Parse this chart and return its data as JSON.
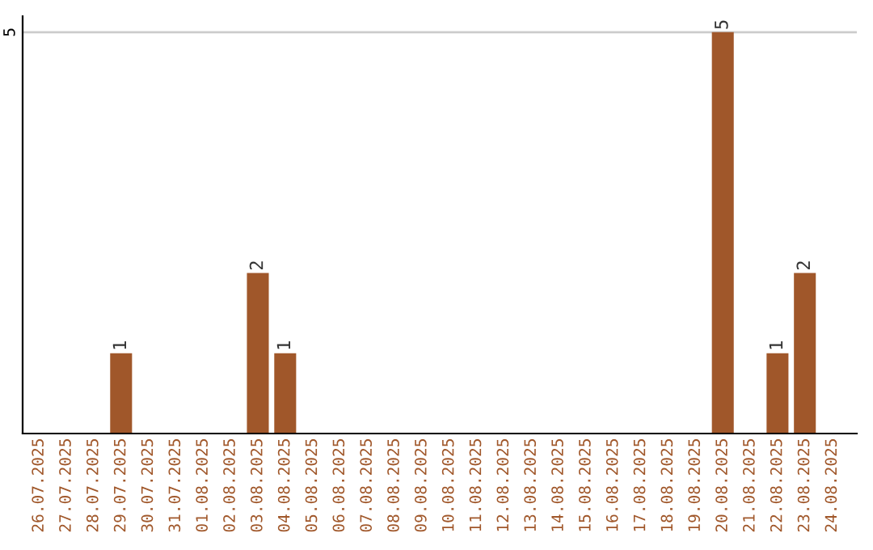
{
  "chart_data": {
    "type": "bar",
    "categories": [
      "26.07.2025",
      "27.07.2025",
      "28.07.2025",
      "29.07.2025",
      "30.07.2025",
      "31.07.2025",
      "01.08.2025",
      "02.08.2025",
      "03.08.2025",
      "04.08.2025",
      "05.08.2025",
      "06.08.2025",
      "07.08.2025",
      "08.08.2025",
      "09.08.2025",
      "10.08.2025",
      "11.08.2025",
      "12.08.2025",
      "13.08.2025",
      "14.08.2025",
      "15.08.2025",
      "16.08.2025",
      "17.08.2025",
      "18.08.2025",
      "19.08.2025",
      "20.08.2025",
      "21.08.2025",
      "22.08.2025",
      "23.08.2025",
      "24.08.2025"
    ],
    "values": [
      0,
      0,
      0,
      1,
      0,
      0,
      0,
      0,
      2,
      1,
      0,
      0,
      0,
      0,
      0,
      0,
      0,
      0,
      0,
      0,
      0,
      0,
      0,
      0,
      0,
      5,
      0,
      1,
      2,
      0
    ],
    "value_labels": [
      null,
      null,
      null,
      "1",
      null,
      null,
      null,
      null,
      "2",
      "1",
      null,
      null,
      null,
      null,
      null,
      null,
      null,
      null,
      null,
      null,
      null,
      null,
      null,
      null,
      null,
      "5",
      null,
      "1",
      "2",
      null
    ],
    "color": "#a0572a",
    "ylim": [
      0,
      5.2
    ],
    "yticks": [
      5
    ],
    "grid": "y"
  }
}
